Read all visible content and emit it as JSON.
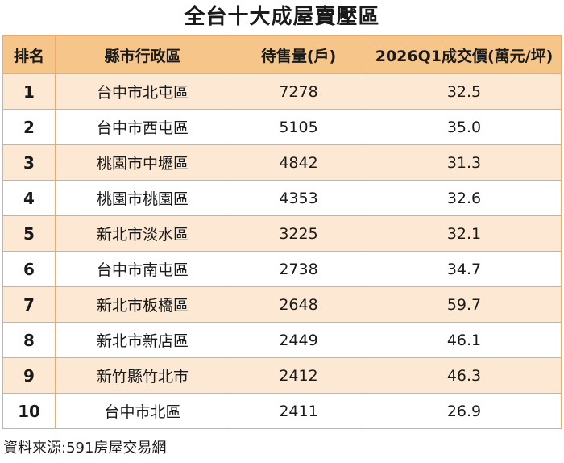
{
  "title": "全台十大成屋賣壓區",
  "table": {
    "headers": {
      "rank": "排名",
      "district": "縣市行政區",
      "supply": "待售量(戶)",
      "price": "2026Q1成交價(萬元/坪)"
    },
    "rows": [
      {
        "rank": "1",
        "district": "台中市北屯區",
        "supply": "7278",
        "price": "32.5"
      },
      {
        "rank": "2",
        "district": "台中市西屯區",
        "supply": "5105",
        "price": "35.0"
      },
      {
        "rank": "3",
        "district": "桃園市中壢區",
        "supply": "4842",
        "price": "31.3"
      },
      {
        "rank": "4",
        "district": "桃園市桃園區",
        "supply": "4353",
        "price": "32.6"
      },
      {
        "rank": "5",
        "district": "新北市淡水區",
        "supply": "3225",
        "price": "32.1"
      },
      {
        "rank": "6",
        "district": "台中市南屯區",
        "supply": "2738",
        "price": "34.7"
      },
      {
        "rank": "7",
        "district": "新北市板橋區",
        "supply": "2648",
        "price": "59.7"
      },
      {
        "rank": "8",
        "district": "新北市新店區",
        "supply": "2449",
        "price": "46.1"
      },
      {
        "rank": "9",
        "district": "新竹縣竹北市",
        "supply": "2412",
        "price": "46.3"
      },
      {
        "rank": "10",
        "district": "台中市北區",
        "supply": "2411",
        "price": "26.9"
      }
    ]
  },
  "source": "資料來源:591房屋交易網",
  "colors": {
    "header_bg": "#f6c589",
    "odd_row_bg": "#fde9d3",
    "even_row_bg": "#ffffff",
    "border": "#e8ad6a"
  }
}
